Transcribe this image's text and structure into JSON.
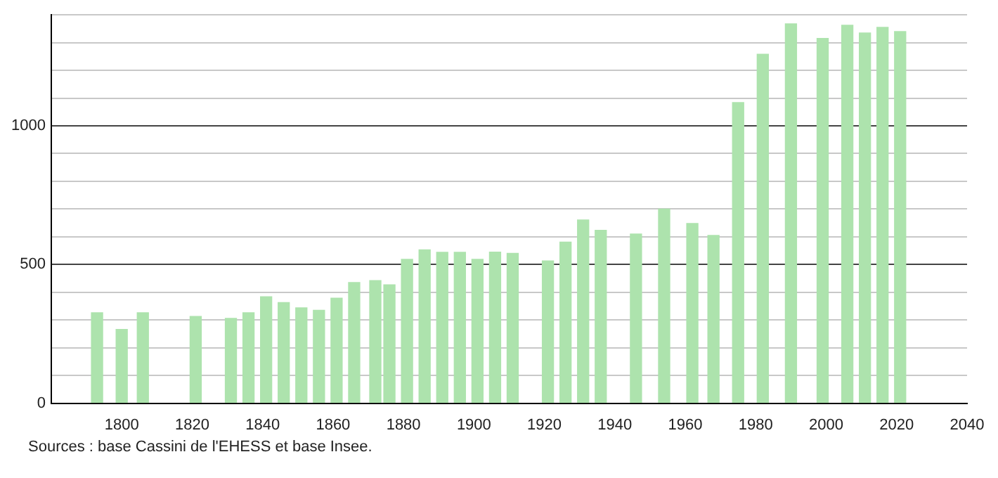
{
  "chart_data": {
    "type": "bar",
    "x": [
      1793,
      1800,
      1806,
      1821,
      1831,
      1836,
      1841,
      1846,
      1851,
      1856,
      1861,
      1866,
      1872,
      1876,
      1881,
      1886,
      1891,
      1896,
      1901,
      1906,
      1911,
      1921,
      1926,
      1931,
      1936,
      1946,
      1954,
      1962,
      1968,
      1975,
      1982,
      1990,
      1999,
      2006,
      2011,
      2016,
      2021
    ],
    "values": [
      326,
      266,
      326,
      313,
      306,
      326,
      384,
      363,
      344,
      335,
      379,
      435,
      442,
      427,
      519,
      553,
      544,
      544,
      519,
      545,
      540,
      513,
      581,
      661,
      623,
      610,
      700,
      648,
      605,
      1084,
      1258,
      1368,
      1315,
      1363,
      1335,
      1355,
      1340
    ],
    "color": "#ade3ad",
    "xlim": [
      1780,
      2040
    ],
    "xticks": [
      1800,
      1820,
      1840,
      1860,
      1880,
      1900,
      1920,
      1940,
      1960,
      1980,
      2000,
      2020,
      2040
    ],
    "ylim": [
      0,
      1400
    ],
    "yticks": [
      0,
      {
        "value": 100,
        "label": null
      },
      {
        "value": 200,
        "label": null
      },
      {
        "value": 300,
        "label": null
      },
      {
        "value": 400,
        "label": null
      },
      500,
      {
        "value": 600,
        "label": null
      },
      {
        "value": 700,
        "label": null
      },
      {
        "value": 800,
        "label": null
      },
      {
        "value": 900,
        "label": null
      },
      1000,
      {
        "value": 1100,
        "label": null
      },
      {
        "value": 1200,
        "label": null
      },
      {
        "value": 1300,
        "label": null
      },
      {
        "value": 1400,
        "label": null
      }
    ],
    "grid": "y",
    "legend": false,
    "annotations": [
      "Sources : base Cassini de l'EHESS et base Insee."
    ]
  }
}
